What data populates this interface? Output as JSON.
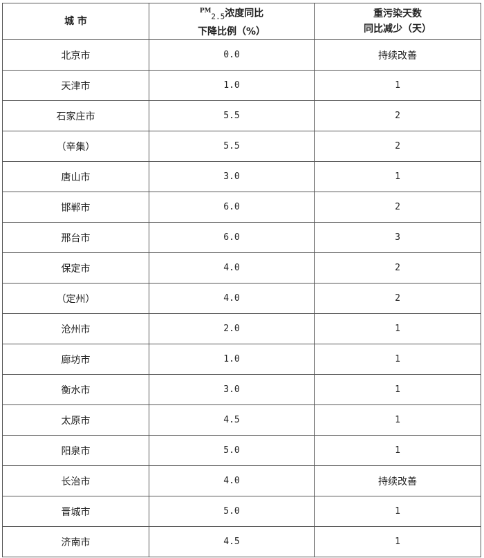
{
  "header": {
    "city": "城 市",
    "pm_prefix": "PM",
    "pm_sub": "2.5",
    "pm_line1_rest": "浓度同比",
    "pm_line2": "下降比例（%）",
    "days_line1": "重污染天数",
    "days_line2": "同比减少（天）"
  },
  "rows": [
    {
      "city": "北京市",
      "pm": "0.0",
      "days": "持续改善"
    },
    {
      "city": "天津市",
      "pm": "1.0",
      "days": "1"
    },
    {
      "city": "石家庄市",
      "pm": "5.5",
      "days": "2"
    },
    {
      "city": "（辛集）",
      "pm": "5.5",
      "days": "2"
    },
    {
      "city": "唐山市",
      "pm": "3.0",
      "days": "1"
    },
    {
      "city": "邯郸市",
      "pm": "6.0",
      "days": "2"
    },
    {
      "city": "邢台市",
      "pm": "6.0",
      "days": "3"
    },
    {
      "city": "保定市",
      "pm": "4.0",
      "days": "2"
    },
    {
      "city": "（定州）",
      "pm": "4.0",
      "days": "2"
    },
    {
      "city": "沧州市",
      "pm": "2.0",
      "days": "1"
    },
    {
      "city": "廊坊市",
      "pm": "1.0",
      "days": "1"
    },
    {
      "city": "衡水市",
      "pm": "3.0",
      "days": "1"
    },
    {
      "city": "太原市",
      "pm": "4.5",
      "days": "1"
    },
    {
      "city": "阳泉市",
      "pm": "5.0",
      "days": "1"
    },
    {
      "city": "长治市",
      "pm": "4.0",
      "days": "持续改善"
    },
    {
      "city": "晋城市",
      "pm": "5.0",
      "days": "1"
    },
    {
      "city": "济南市",
      "pm": "4.5",
      "days": "1"
    }
  ]
}
